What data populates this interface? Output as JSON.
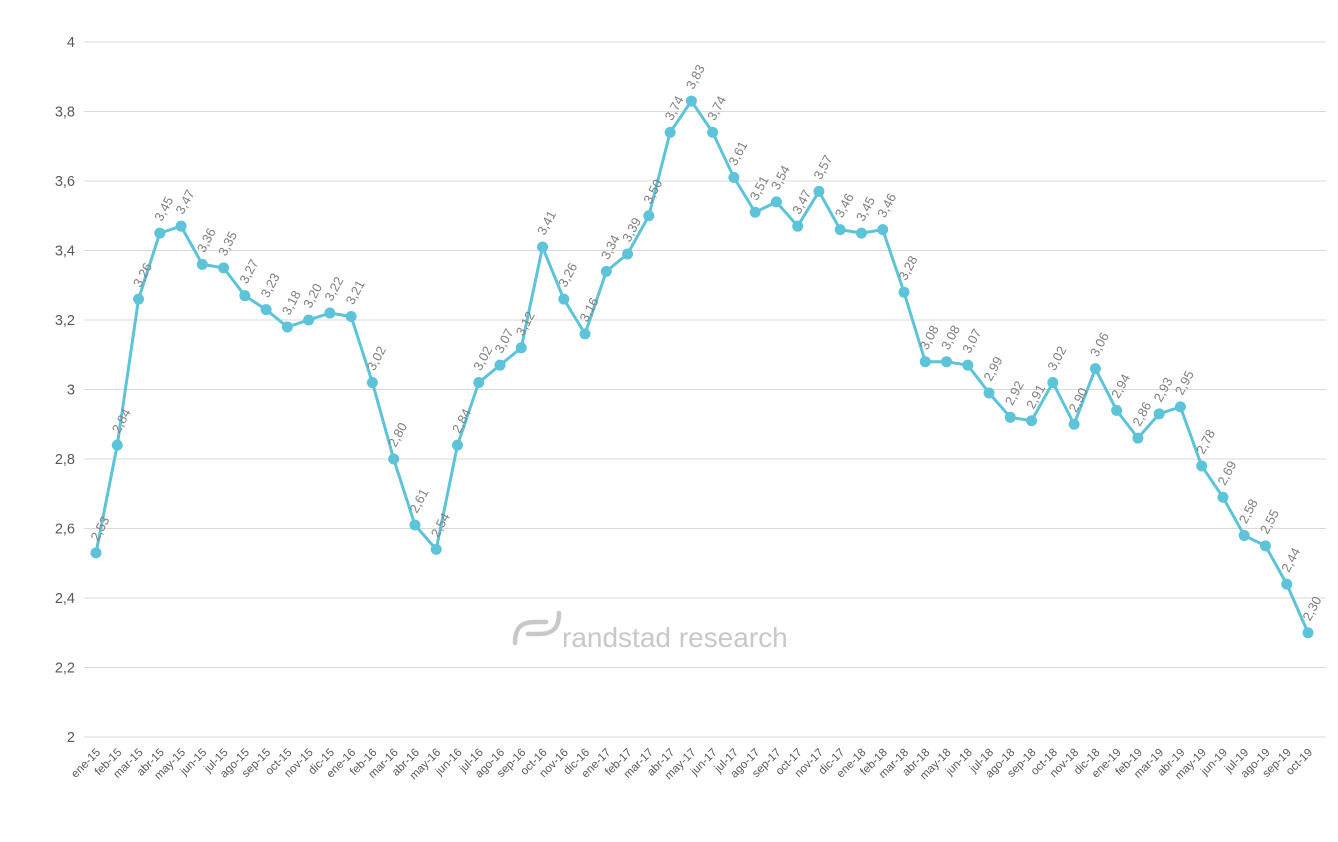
{
  "watermark": {
    "text": "randstad research"
  },
  "chart_data": {
    "type": "line",
    "title": "",
    "xlabel": "",
    "ylabel": "",
    "ylim": [
      2,
      4
    ],
    "grid": true,
    "legend": "none",
    "line_color": "#5cc3d8",
    "marker_color": "#5cc3d8",
    "point_label_color": "#7f7f7f",
    "axis_text_color": "#595959",
    "grid_color": "#d9d9d9",
    "watermark_color": "#c8c8c8",
    "ytick_values": [
      4,
      3.8,
      3.6,
      3.4,
      3.2,
      3,
      2.8,
      2.6,
      2.4,
      2.2,
      2
    ],
    "ytick_labels": [
      "4",
      "3,8",
      "3,6",
      "3,4",
      "3,2",
      "3",
      "2,8",
      "2,6",
      "2,4",
      "2,2",
      "2"
    ],
    "categories": [
      "ene-15",
      "feb-15",
      "mar-15",
      "abr-15",
      "may-15",
      "jun-15",
      "jul-15",
      "ago-15",
      "sep-15",
      "oct-15",
      "nov-15",
      "dic-15",
      "ene-16",
      "feb-16",
      "mar-16",
      "abr-16",
      "may-16",
      "jun-16",
      "jul-16",
      "ago-16",
      "sep-16",
      "oct-16",
      "nov-16",
      "dic-16",
      "ene-17",
      "feb-17",
      "mar-17",
      "abr-17",
      "may-17",
      "jun-17",
      "jul-17",
      "ago-17",
      "sep-17",
      "oct-17",
      "nov-17",
      "dic-17",
      "ene-18",
      "feb-18",
      "mar-18",
      "abr-18",
      "may-18",
      "jun-18",
      "jul-18",
      "ago-18",
      "sep-18",
      "oct-18",
      "nov-18",
      "dic-18",
      "ene-19",
      "feb-19",
      "mar-19",
      "abr-19",
      "may-19",
      "jun-19",
      "jul-19",
      "ago-19",
      "sep-19",
      "oct-19"
    ],
    "values": [
      2.53,
      2.84,
      3.26,
      3.45,
      3.47,
      3.36,
      3.35,
      3.27,
      3.23,
      3.18,
      3.2,
      3.22,
      3.21,
      3.02,
      2.8,
      2.61,
      2.54,
      2.84,
      3.02,
      3.07,
      3.12,
      3.41,
      3.26,
      3.16,
      3.34,
      3.39,
      3.5,
      3.74,
      3.83,
      3.74,
      3.61,
      3.51,
      3.54,
      3.47,
      3.57,
      3.46,
      3.45,
      3.46,
      3.28,
      3.08,
      3.08,
      3.07,
      2.99,
      2.92,
      2.91,
      3.02,
      2.9,
      3.06,
      2.94,
      2.86,
      2.93,
      2.95,
      2.78,
      2.69,
      2.58,
      2.55,
      2.44,
      2.3
    ],
    "point_labels": [
      "2,53",
      "2,84",
      "3,26",
      "3,45",
      "3,47",
      "3,36",
      "3,35",
      "3,27",
      "3,23",
      "3,18",
      "3,20",
      "3,22",
      "3,21",
      "3,02",
      "2,80",
      "2,61",
      "2,54",
      "2,84",
      "3,02",
      "3,07",
      "3,12",
      "3,41",
      "3,26",
      "3,16",
      "3,34",
      "3,39",
      "3,50",
      "3,74",
      "3,83",
      "3,74",
      "3,61",
      "3,51",
      "3,54",
      "3,47",
      "3,57",
      "3,46",
      "3,45",
      "3,46",
      "3,28",
      "3,08",
      "3,08",
      "3,07",
      "2,99",
      "2,92",
      "2,91",
      "3,02",
      "2,90",
      "3,06",
      "2,94",
      "2,86",
      "2,93",
      "2,95",
      "2,78",
      "2,69",
      "2,58",
      "2,55",
      "2,44",
      "2,30"
    ]
  }
}
